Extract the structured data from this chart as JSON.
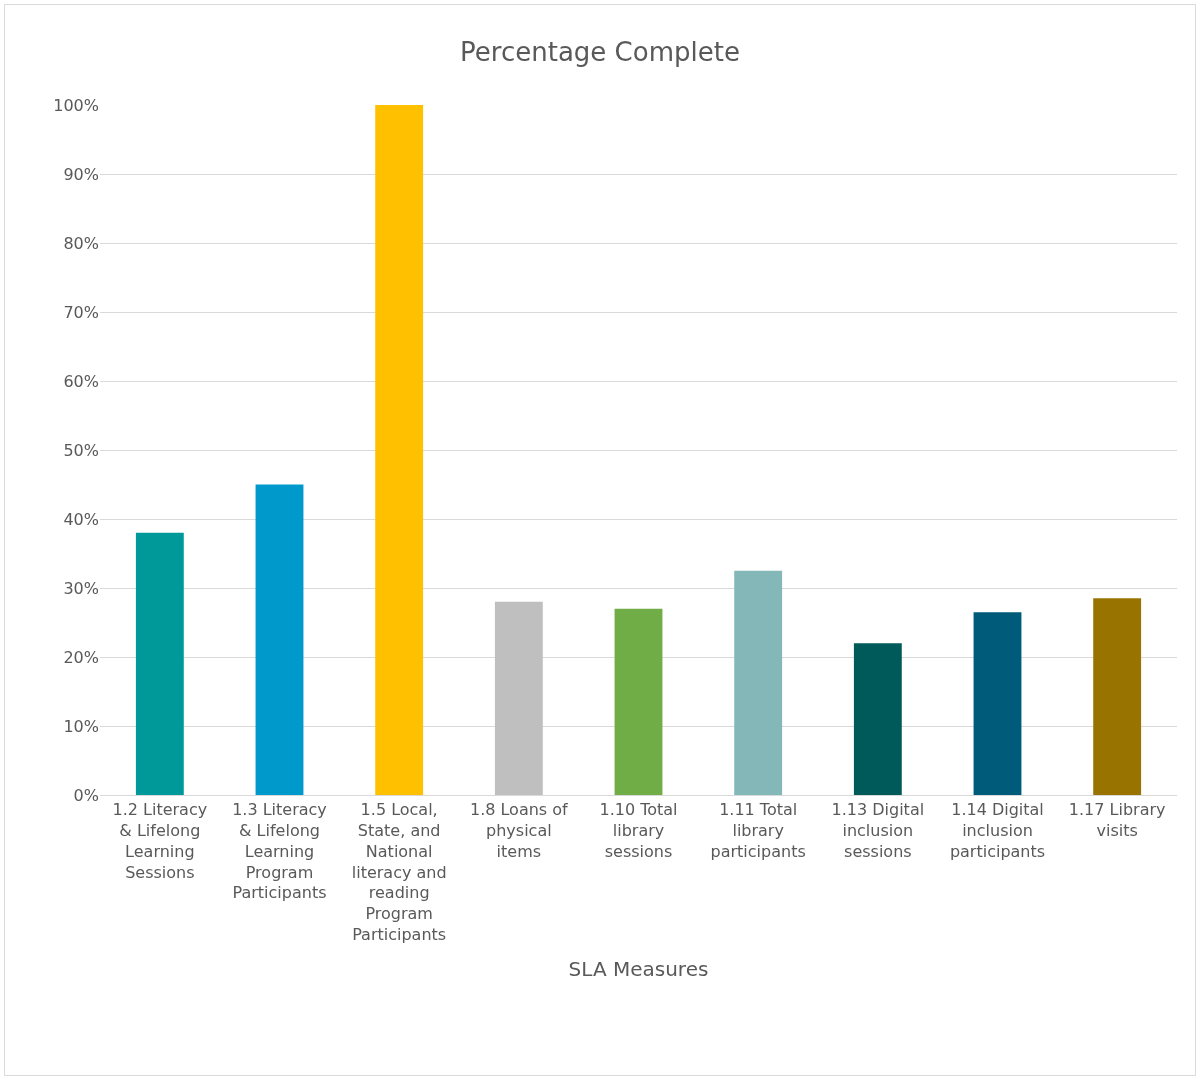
{
  "chart_data": {
    "type": "bar",
    "title": "Percentage Complete",
    "xlabel": "SLA Measures",
    "categories": [
      "1.2 Literacy & Lifelong Learning Sessions",
      "1.3 Literacy & Lifelong Learning Program Participants",
      "1.5 Local, State, and National literacy and reading Program Participants",
      "1.8 Loans of physical items",
      "1.10 Total library sessions",
      "1.11 Total library participants",
      "1.13 Digital inclusion sessions",
      "1.14 Digital inclusion participants",
      "1.17 Library visits"
    ],
    "values": [
      38,
      45,
      100,
      28,
      27,
      32.5,
      22,
      26.5,
      28.5
    ],
    "colors": [
      "#00999a",
      "#0099cc",
      "#ffc000",
      "#bfbfbf",
      "#70ad47",
      "#84b8b8",
      "#005a5a",
      "#005a7a",
      "#997300"
    ],
    "ylim": [
      0,
      100
    ],
    "yticks": [
      {
        "value": 0,
        "label": "0%"
      },
      {
        "value": 10,
        "label": "10%"
      },
      {
        "value": 20,
        "label": "20%"
      },
      {
        "value": 30,
        "label": "30%"
      },
      {
        "value": 40,
        "label": "40%"
      },
      {
        "value": 50,
        "label": "50%"
      },
      {
        "value": 60,
        "label": "60%"
      },
      {
        "value": 70,
        "label": "70%"
      },
      {
        "value": 80,
        "label": "80%"
      },
      {
        "value": 90,
        "label": "90%"
      },
      {
        "value": 100,
        "label": "100%"
      }
    ],
    "grid": "y"
  }
}
